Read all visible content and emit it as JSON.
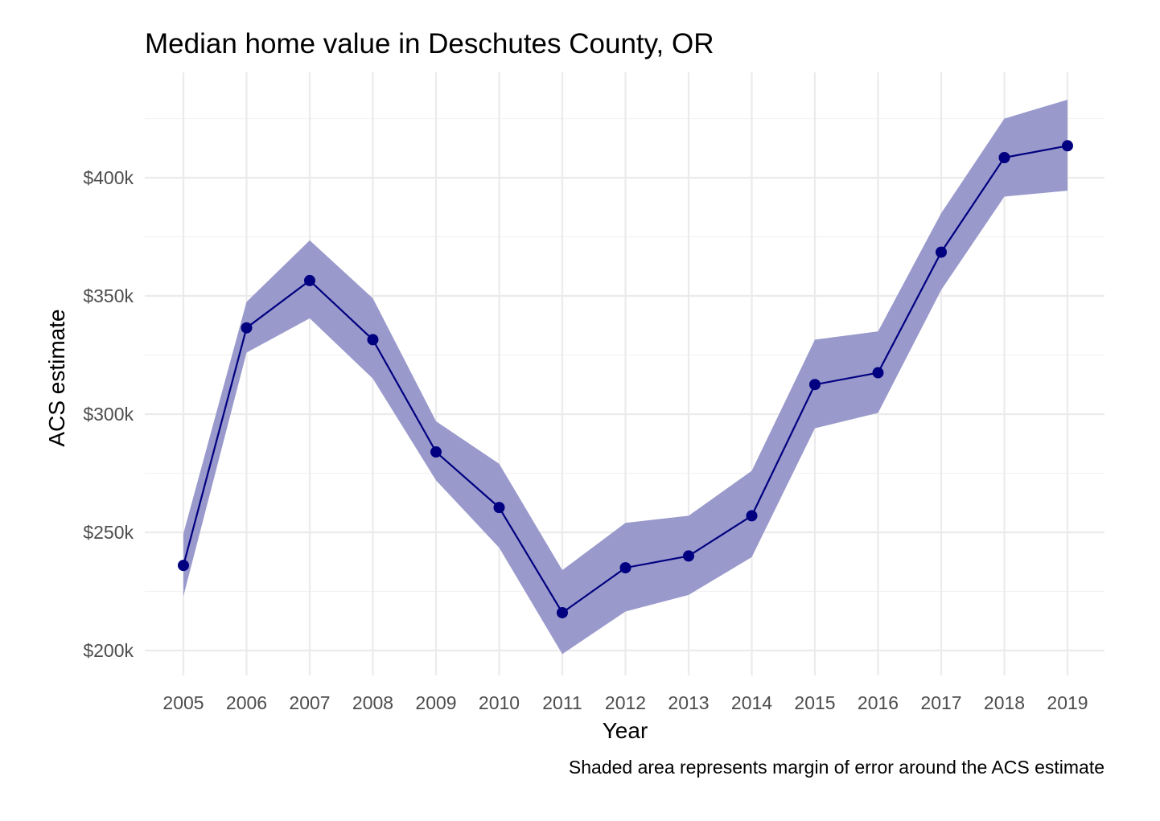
{
  "chart_data": {
    "type": "line",
    "title": "Median home value in Deschutes County, OR",
    "xlabel": "Year",
    "ylabel": "ACS estimate",
    "caption": "Shaded area represents margin of error around the ACS estimate",
    "categories": [
      "2005",
      "2006",
      "2007",
      "2008",
      "2009",
      "2010",
      "2011",
      "2012",
      "2013",
      "2014",
      "2015",
      "2016",
      "2017",
      "2018",
      "2019"
    ],
    "series": [
      {
        "values": [
          236000,
          336500,
          356500,
          331500,
          284000,
          260500,
          216000,
          235000,
          240000,
          257000,
          312500,
          317500,
          368500,
          408500,
          413500
        ],
        "lower": [
          223000,
          326000,
          340500,
          315000,
          272000,
          243500,
          198500,
          216500,
          223500,
          239500,
          294000,
          300500,
          352500,
          392000,
          394500
        ],
        "upper": [
          249500,
          347500,
          373500,
          349000,
          297000,
          279000,
          234000,
          254000,
          257000,
          276000,
          331500,
          335000,
          385000,
          425000,
          433000
        ],
        "color": "#000080",
        "band_color": "#9999cc"
      }
    ],
    "ylim": [
      190000,
      434000
    ],
    "yticks": [
      200000,
      250000,
      300000,
      350000,
      400000
    ],
    "ytick_labels": [
      "$200k",
      "$250k",
      "$300k",
      "$350k",
      "$400k"
    ],
    "grid": true,
    "legend": "none"
  }
}
